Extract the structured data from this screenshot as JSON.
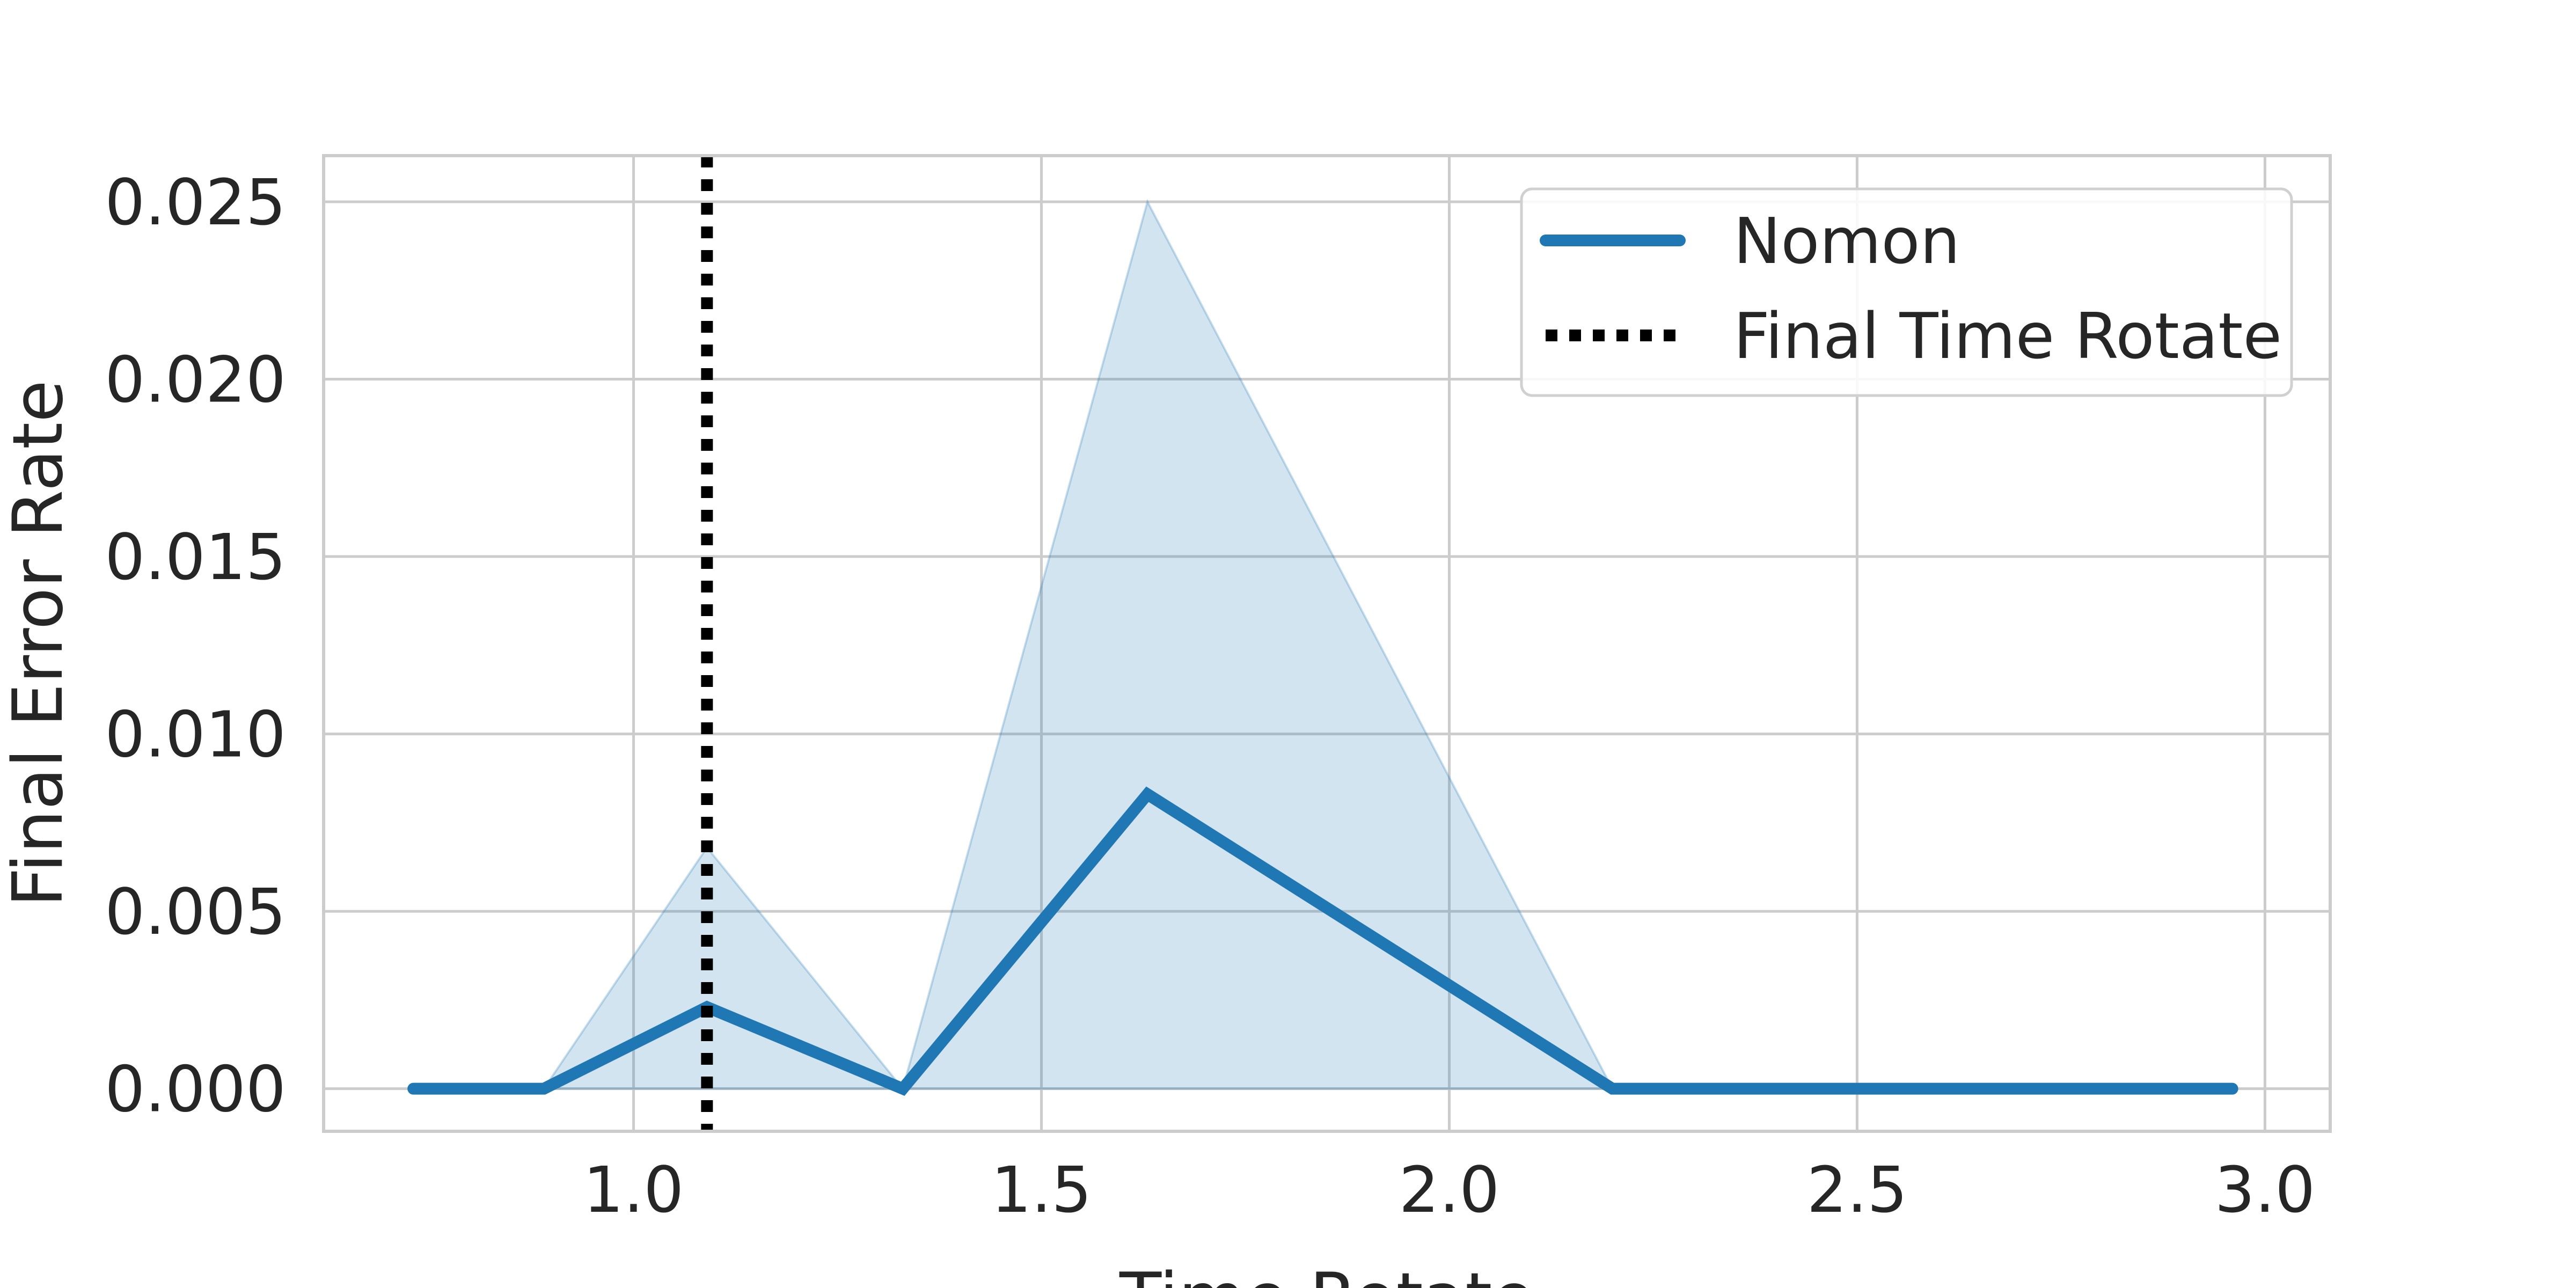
{
  "chart_data": {
    "type": "line",
    "title": "",
    "xlabel": "Time Rotate",
    "ylabel": "Final Error Rate",
    "xlim": [
      0.62,
      3.08
    ],
    "ylim": [
      -0.0012,
      0.0263
    ],
    "x_ticks": [
      1.0,
      1.5,
      2.0,
      2.5,
      3.0
    ],
    "x_tick_labels": [
      "1.0",
      "1.5",
      "2.0",
      "2.5",
      "3.0"
    ],
    "y_ticks": [
      0.0,
      0.005,
      0.01,
      0.015,
      0.02,
      0.025
    ],
    "y_tick_labels": [
      "0.000",
      "0.005",
      "0.010",
      "0.015",
      "0.020",
      "0.025"
    ],
    "grid": true,
    "legend_position": "top-right",
    "series": [
      {
        "name": "Nomon",
        "color": "#1f77b4",
        "x": [
          0.73,
          0.89,
          1.09,
          1.33,
          1.63,
          2.2,
          2.96
        ],
        "y": [
          0.0,
          0.0,
          0.0023,
          0.0,
          0.0083,
          0.0,
          0.0
        ],
        "band_lower": [
          0.0,
          0.0,
          0.0,
          0.0,
          0.0,
          0.0,
          0.0
        ],
        "band_upper": [
          0.0,
          0.0,
          0.0068,
          0.0,
          0.025,
          0.0,
          0.0
        ]
      }
    ],
    "vlines": [
      {
        "name": "Final Time Rotate",
        "x": 1.09,
        "color": "#000000",
        "style": "dotted"
      }
    ]
  }
}
